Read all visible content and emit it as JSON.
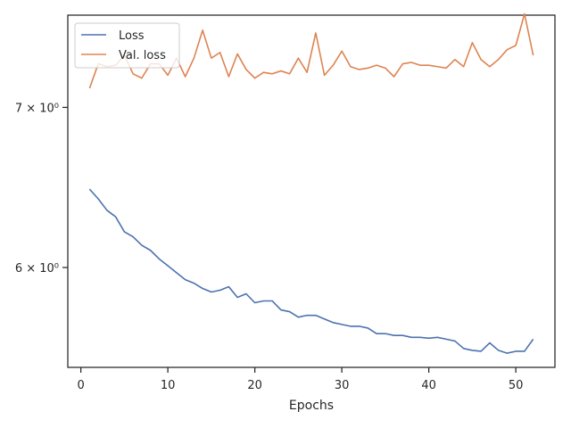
{
  "chart_data": {
    "type": "line",
    "xlabel": "Epochs",
    "ylabel": "",
    "yscale": "log",
    "xlim": [
      -1.5,
      54.5
    ],
    "ylim": [
      5.45,
      7.65
    ],
    "xticks": [
      {
        "value": 0,
        "label": "0"
      },
      {
        "value": 10,
        "label": "10"
      },
      {
        "value": 20,
        "label": "20"
      },
      {
        "value": 30,
        "label": "30"
      },
      {
        "value": 40,
        "label": "40"
      },
      {
        "value": 50,
        "label": "50"
      }
    ],
    "yticks": [
      {
        "value": 6,
        "label": "6 × 10⁰"
      },
      {
        "value": 7,
        "label": "7 × 10⁰"
      }
    ],
    "grid": false,
    "legend_position": "top-left",
    "x": [
      1,
      2,
      3,
      4,
      5,
      6,
      7,
      8,
      9,
      10,
      11,
      12,
      13,
      14,
      15,
      16,
      17,
      18,
      19,
      20,
      21,
      22,
      23,
      24,
      25,
      26,
      27,
      28,
      29,
      30,
      31,
      32,
      33,
      34,
      35,
      36,
      37,
      38,
      39,
      40,
      41,
      42,
      43,
      44,
      45,
      46,
      47,
      48,
      49,
      50,
      51,
      52
    ],
    "series": [
      {
        "name": "Loss",
        "color": "#4c72b0",
        "values": [
          6.47,
          6.41,
          6.34,
          6.3,
          6.21,
          6.18,
          6.13,
          6.1,
          6.05,
          6.01,
          5.97,
          5.93,
          5.91,
          5.88,
          5.86,
          5.87,
          5.89,
          5.83,
          5.85,
          5.8,
          5.81,
          5.81,
          5.76,
          5.75,
          5.72,
          5.73,
          5.73,
          5.71,
          5.69,
          5.68,
          5.67,
          5.67,
          5.66,
          5.63,
          5.63,
          5.62,
          5.62,
          5.61,
          5.61,
          5.605,
          5.61,
          5.6,
          5.59,
          5.55,
          5.54,
          5.535,
          5.58,
          5.54,
          5.525,
          5.535,
          5.535,
          5.6
        ]
      },
      {
        "name": "Val. loss",
        "color": "#dd8452",
        "values": [
          7.13,
          7.3,
          7.28,
          7.29,
          7.36,
          7.23,
          7.2,
          7.3,
          7.3,
          7.22,
          7.34,
          7.21,
          7.34,
          7.54,
          7.34,
          7.38,
          7.21,
          7.37,
          7.26,
          7.2,
          7.24,
          7.23,
          7.25,
          7.23,
          7.34,
          7.24,
          7.52,
          7.22,
          7.29,
          7.39,
          7.28,
          7.26,
          7.27,
          7.29,
          7.27,
          7.21,
          7.3,
          7.31,
          7.29,
          7.29,
          7.28,
          7.27,
          7.33,
          7.28,
          7.45,
          7.33,
          7.28,
          7.33,
          7.4,
          7.43,
          7.66,
          7.36
        ]
      }
    ]
  }
}
